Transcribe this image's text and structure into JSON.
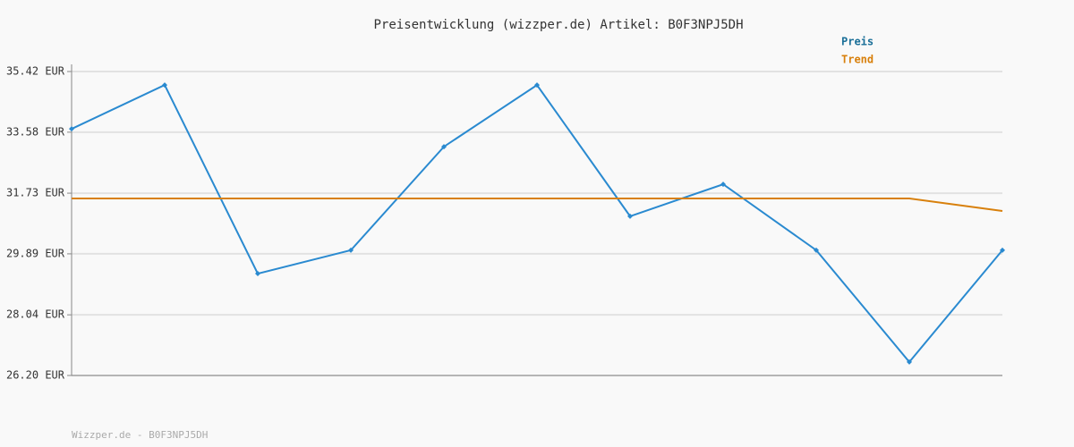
{
  "chart_data": {
    "type": "line",
    "title": "Preisentwicklung (wizzper.de) Artikel: B0F3NPJ5DH",
    "categories": [
      null,
      null,
      null,
      null,
      null,
      null,
      null,
      null,
      null,
      null,
      null
    ],
    "series": [
      {
        "name": "Preis",
        "color": "#2a8ad0",
        "legend_color": "#1a6f98",
        "markers": true,
        "values": [
          33.68,
          35.01,
          29.29,
          30.0,
          33.14,
          35.01,
          31.03,
          32.0,
          30.0,
          26.61,
          30.0
        ]
      },
      {
        "name": "Trend",
        "color": "#d8800c",
        "legend_color": "#d8800c",
        "markers": false,
        "values": [
          31.57,
          31.57,
          31.57,
          31.57,
          31.57,
          31.57,
          31.57,
          31.57,
          31.57,
          31.57,
          31.19
        ]
      }
    ],
    "ylim": [
      26.2,
      35.42
    ],
    "yticks": [
      {
        "value": 26.2,
        "label": "26.20 EUR"
      },
      {
        "value": 28.04,
        "label": "28.04 EUR"
      },
      {
        "value": 29.89,
        "label": "29.89 EUR"
      },
      {
        "value": 31.73,
        "label": "31.73 EUR"
      },
      {
        "value": 33.58,
        "label": "33.58 EUR"
      },
      {
        "value": 35.42,
        "label": "35.42 EUR"
      }
    ],
    "grid": true,
    "footer": "Wizzper.de - B0F3NPJ5DH"
  }
}
